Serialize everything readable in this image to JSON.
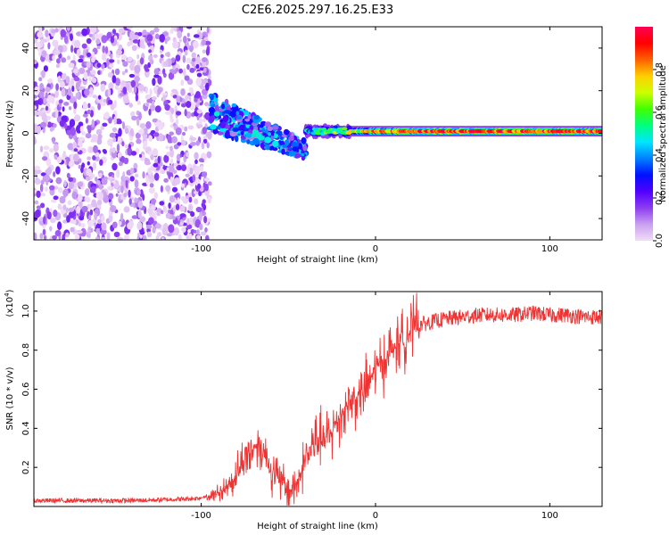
{
  "chart_data": [
    {
      "type": "heatmap",
      "title": "C2E6.2025.297.16.25.E33",
      "xlabel": "Height of straight line (km)",
      "ylabel": "Frequency (Hz)",
      "xlim": [
        -196,
        130
      ],
      "ylim": [
        -50,
        50
      ],
      "xticks": [
        -100,
        0,
        100
      ],
      "yticks": [
        -40,
        -20,
        0,
        20,
        40
      ],
      "xtick_labels": [
        "-100",
        "0",
        "100"
      ],
      "ytick_labels": [
        "-40",
        "-20",
        "0",
        "20",
        "40"
      ],
      "colorbar": {
        "label": "Normalized spectral amplitude",
        "range": [
          0,
          1
        ],
        "ticks": [
          0.0,
          0.2,
          0.4,
          0.6,
          0.8
        ],
        "tick_labels": [
          "0.0",
          "0.2",
          "0.4",
          "0.6",
          "0.8"
        ],
        "colors": [
          "#f2ddf7",
          "#c9a0f0",
          "#8c3cf0",
          "#5000ff",
          "#0010ff",
          "#0080ff",
          "#00e6ff",
          "#00ff80",
          "#40ff00",
          "#ccff00",
          "#ffd000",
          "#ff6000",
          "#ff0000",
          "#ff0050"
        ]
      },
      "regions": [
        {
          "name": "broadband noise",
          "x_range": [
            -196,
            -95
          ],
          "freq_range": [
            -50,
            50
          ],
          "amplitude_range": [
            0.0,
            0.2
          ]
        },
        {
          "name": "transition cluster",
          "x_range": [
            -95,
            -40
          ],
          "freq_center": [
            10,
            -8
          ],
          "amplitude_range": [
            0.1,
            0.5
          ]
        },
        {
          "name": "narrow tone",
          "x_range": [
            -40,
            130
          ],
          "freq_center": 1,
          "amplitude_range": [
            0.4,
            1.0
          ]
        }
      ]
    },
    {
      "type": "line",
      "xlabel": "Height of straight line (km)",
      "ylabel": "SNR (10 * v/v)",
      "y_scale_label": "(x10",
      "y_scale_exp": "4",
      "y_scale_close": ")",
      "xlim": [
        -196,
        130
      ],
      "ylim": [
        0.0,
        1.1
      ],
      "xticks": [
        -100,
        0,
        100
      ],
      "yticks": [
        0.2,
        0.4,
        0.6,
        0.8,
        1.0
      ],
      "xtick_labels": [
        "-100",
        "0",
        "100"
      ],
      "ytick_labels": [
        "0.2",
        "0.4",
        "0.6",
        "0.8",
        "1.0"
      ],
      "color": "#ee3333",
      "series": [
        {
          "name": "SNR",
          "x": [
            -196,
            -180,
            -160,
            -140,
            -120,
            -105,
            -95,
            -88,
            -82,
            -78,
            -74,
            -70,
            -67,
            -64,
            -60,
            -56,
            -52,
            -48,
            -44,
            -40,
            -36,
            -33,
            -30,
            -27,
            -24,
            -20,
            -16,
            -12,
            -8,
            -4,
            0,
            4,
            8,
            12,
            16,
            20,
            25,
            30,
            35,
            40,
            50,
            60,
            70,
            80,
            90,
            100,
            110,
            120,
            130
          ],
          "y": [
            0.03,
            0.03,
            0.03,
            0.03,
            0.035,
            0.04,
            0.05,
            0.08,
            0.13,
            0.2,
            0.26,
            0.3,
            0.32,
            0.28,
            0.2,
            0.14,
            0.1,
            0.08,
            0.14,
            0.25,
            0.31,
            0.35,
            0.33,
            0.35,
            0.4,
            0.47,
            0.52,
            0.55,
            0.58,
            0.63,
            0.7,
            0.74,
            0.78,
            0.82,
            0.86,
            0.9,
            0.93,
            0.94,
            0.95,
            0.96,
            0.97,
            0.98,
            0.98,
            0.98,
            0.99,
            0.98,
            0.98,
            0.97,
            0.97
          ]
        }
      ]
    }
  ]
}
